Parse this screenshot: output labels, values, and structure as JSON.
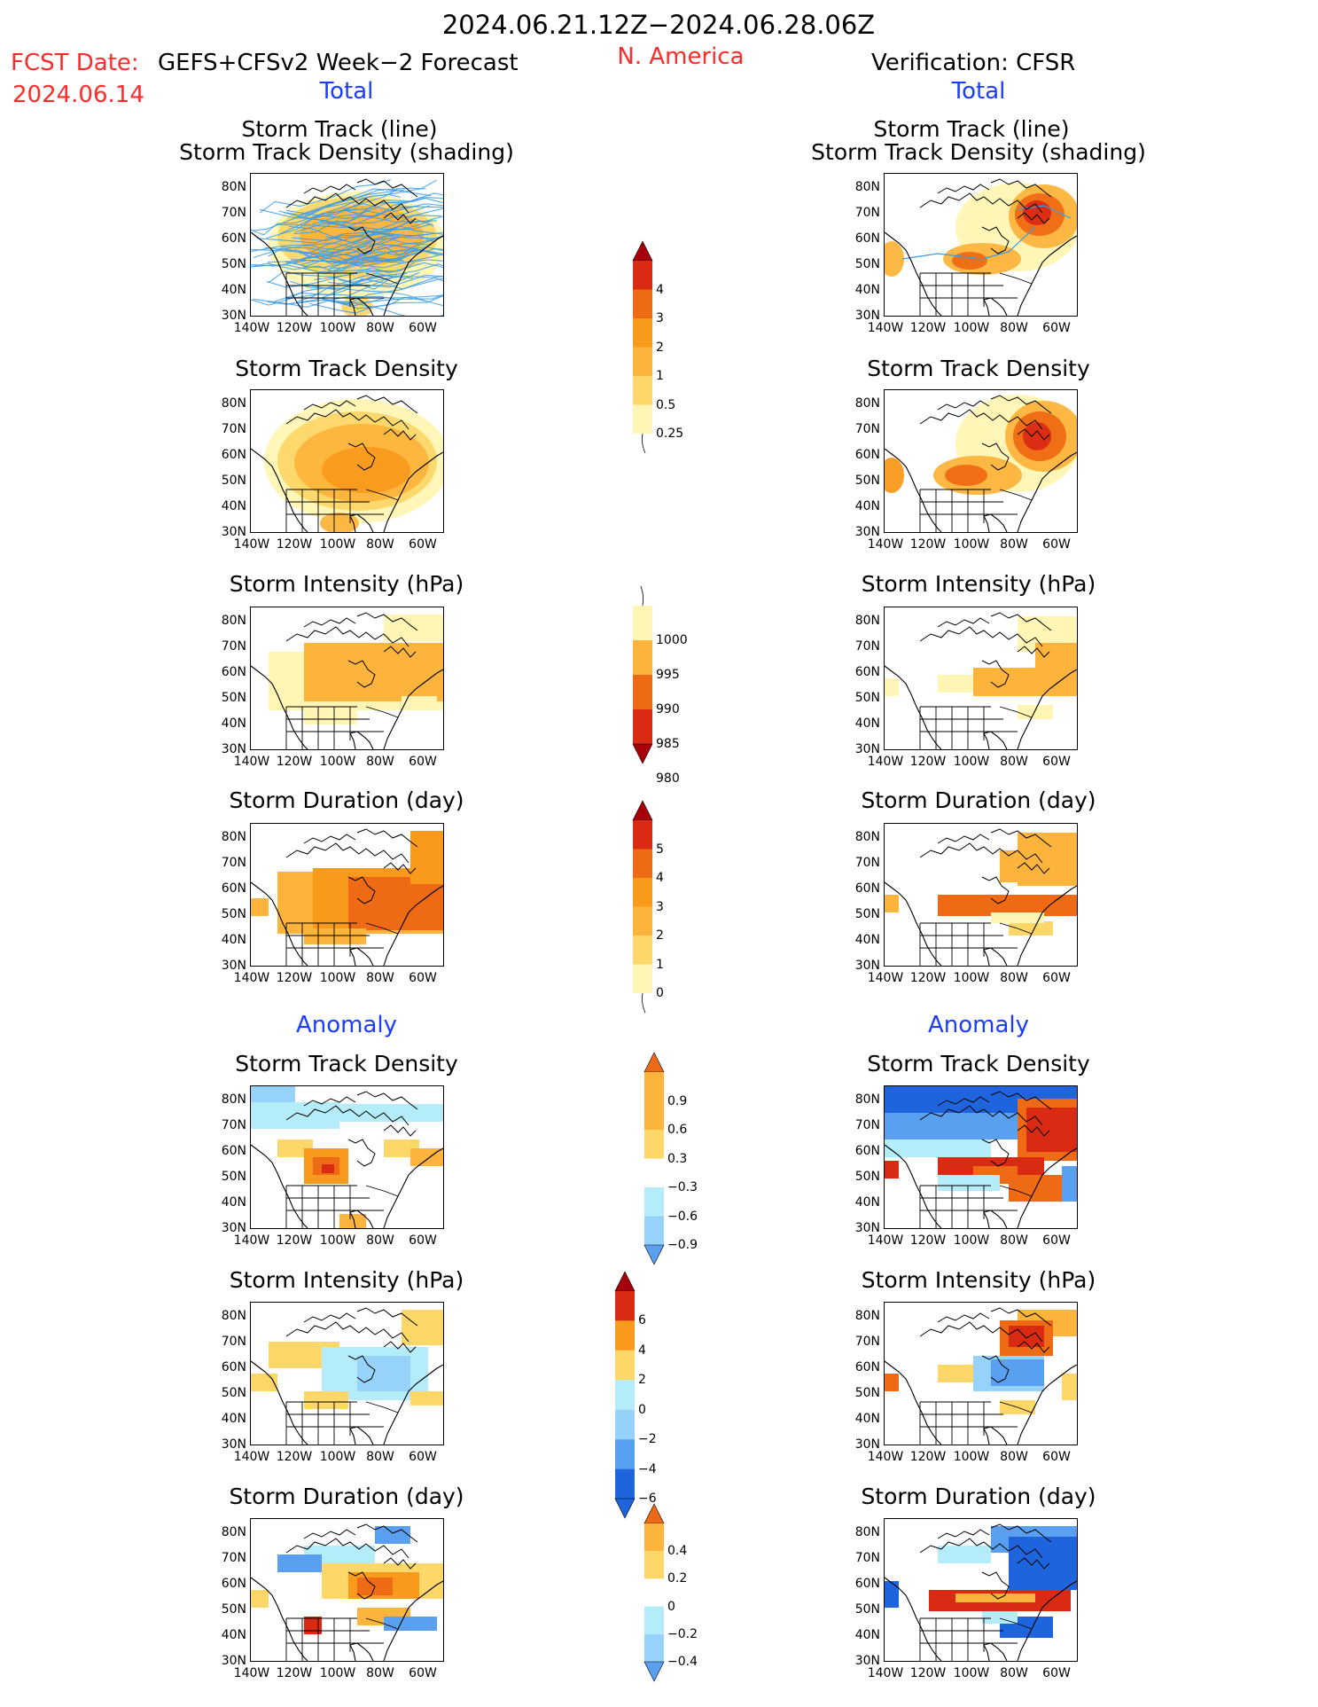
{
  "header": {
    "period": "2024.06.21.12Z−2024.06.28.06Z",
    "fcst_label": "FCST Date:",
    "fcst_model": "GEFS+CFSv2 Week−2 Forecast",
    "fcst_date": "2024.06.14",
    "region": "N. America",
    "verification": "Verification: CFSR"
  },
  "sections": {
    "total": "Total",
    "anomaly": "Anomaly"
  },
  "panel_titles": {
    "track_line": "Storm Track (line)",
    "track_shading": "Storm Track Density (shading)",
    "density": "Storm Track Density",
    "intensity": "Storm Intensity (hPa)",
    "duration": "Storm Duration (day)"
  },
  "axes": {
    "lat_labels": [
      "80N",
      "70N",
      "60N",
      "50N",
      "40N",
      "30N"
    ],
    "lon_labels": [
      "140W",
      "120W",
      "100W",
      "80W",
      "60W"
    ]
  },
  "colorbars": {
    "density_total": [
      "4",
      "3",
      "2",
      "1",
      "0.5",
      "0.25"
    ],
    "intensity_total": [
      "1000",
      "995",
      "990",
      "985",
      "980"
    ],
    "duration_total": [
      "5",
      "4",
      "3",
      "2",
      "1",
      "0"
    ],
    "density_anom": [
      "0.9",
      "0.6",
      "0.3",
      "−0.3",
      "−0.6",
      "−0.9"
    ],
    "intensity_anom": [
      "6",
      "4",
      "2",
      "0",
      "−2",
      "−4",
      "−6"
    ],
    "duration_anom": [
      "0.4",
      "0.2",
      "0",
      "−0.2",
      "−0.4"
    ]
  },
  "palette": {
    "pale_yellow": "#fff5b4",
    "yellow": "#fdd768",
    "orange_light": "#fdb43c",
    "orange": "#f99a1c",
    "orange_dark": "#ef6a14",
    "red": "#d92a14",
    "dark_red": "#a8000a",
    "light_blue": "#b4ecfa",
    "sky_blue": "#96d2fa",
    "blue": "#5aa0f0",
    "dark_blue": "#1e64dc"
  }
}
